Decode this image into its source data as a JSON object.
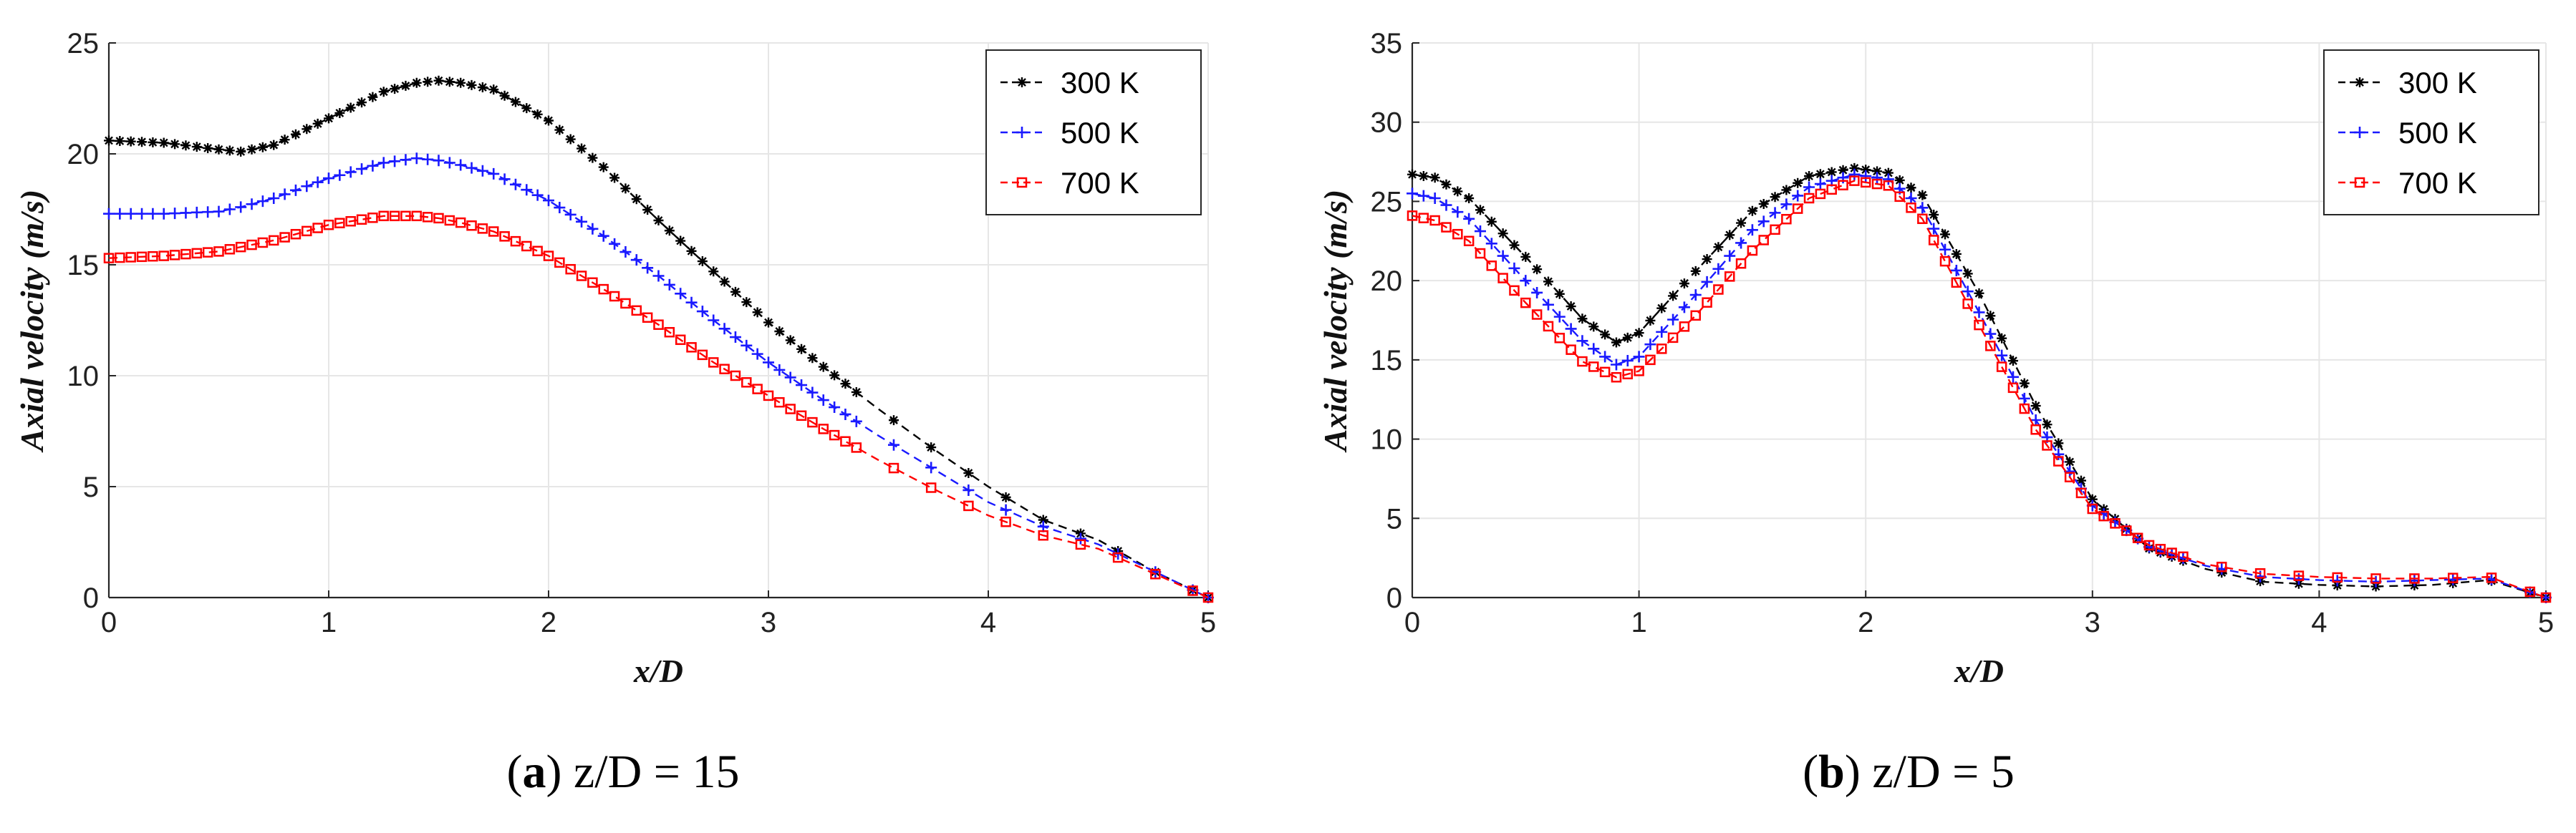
{
  "chart_data": [
    {
      "type": "line",
      "panel_label": "a",
      "caption_text": "z/D = 15",
      "xlabel": "x/D",
      "ylabel": "Axial velocity (m/s)",
      "xlim": [
        0,
        5
      ],
      "ylim": [
        0,
        25
      ],
      "xticks": [
        "0",
        "1",
        "2",
        "3",
        "4",
        "5"
      ],
      "yticks": [
        "0",
        "5",
        "10",
        "15",
        "20",
        "25"
      ],
      "grid": true,
      "legend_position": "top-right",
      "x": [
        0,
        0.25,
        0.5,
        0.6,
        0.75,
        1.0,
        1.25,
        1.4,
        1.5,
        1.6,
        1.75,
        2.0,
        2.25,
        2.5,
        2.75,
        3.0,
        3.25,
        3.5,
        3.75,
        4.0,
        4.25,
        4.5,
        4.75,
        5.0
      ],
      "series": [
        {
          "name": "300 K",
          "color": "#000000",
          "marker": "asterisk",
          "values": [
            20.6,
            20.5,
            20.2,
            20.1,
            20.4,
            21.6,
            22.8,
            23.2,
            23.3,
            23.2,
            22.9,
            21.5,
            19.4,
            17.0,
            14.7,
            12.4,
            10.4,
            8.5,
            6.7,
            5.0,
            3.5,
            2.6,
            1.2,
            0.0
          ]
        },
        {
          "name": "500 K",
          "color": "#1a1aff",
          "marker": "plus",
          "values": [
            17.3,
            17.3,
            17.4,
            17.6,
            18.0,
            18.9,
            19.6,
            19.8,
            19.7,
            19.5,
            19.1,
            17.9,
            16.3,
            14.5,
            12.5,
            10.6,
            8.9,
            7.3,
            5.8,
            4.3,
            3.2,
            2.4,
            1.2,
            0.0
          ]
        },
        {
          "name": "700 K",
          "color": "#ff0000",
          "marker": "square",
          "values": [
            15.3,
            15.4,
            15.6,
            15.8,
            16.1,
            16.8,
            17.2,
            17.2,
            17.1,
            16.9,
            16.5,
            15.4,
            13.9,
            12.3,
            10.6,
            9.1,
            7.6,
            6.2,
            4.9,
            3.7,
            2.8,
            2.2,
            1.1,
            0.0
          ]
        }
      ]
    },
    {
      "type": "line",
      "panel_label": "b",
      "caption_text": "z/D = 5",
      "xlabel": "x/D",
      "ylabel": "Axial velocity (m/s)",
      "xlim": [
        0,
        5
      ],
      "ylim": [
        0,
        35
      ],
      "xticks": [
        "0",
        "1",
        "2",
        "3",
        "4",
        "5"
      ],
      "yticks": [
        "0",
        "5",
        "10",
        "15",
        "20",
        "25",
        "30",
        "35"
      ],
      "grid": true,
      "legend_position": "top-right",
      "x": [
        0,
        0.1,
        0.25,
        0.5,
        0.75,
        0.9,
        1.0,
        1.25,
        1.5,
        1.75,
        1.95,
        2.1,
        2.25,
        2.5,
        2.75,
        3.0,
        3.25,
        3.5,
        3.75,
        4.0,
        4.25,
        4.5,
        4.75,
        5.0
      ],
      "series": [
        {
          "name": "300 K",
          "color": "#000000",
          "marker": "asterisk",
          "values": [
            26.7,
            26.5,
            25.2,
            21.5,
            17.6,
            16.1,
            16.7,
            20.6,
            24.4,
            26.6,
            27.1,
            26.8,
            25.4,
            19.2,
            12.1,
            6.2,
            3.1,
            1.8,
            1.0,
            0.8,
            0.7,
            0.8,
            1.1,
            0.0
          ]
        },
        {
          "name": "500 K",
          "color": "#1a1aff",
          "marker": "plus",
          "values": [
            25.5,
            25.2,
            23.9,
            20.0,
            16.2,
            14.7,
            15.2,
            19.1,
            23.2,
            25.9,
            26.7,
            26.4,
            24.6,
            18.0,
            11.2,
            5.8,
            3.2,
            2.0,
            1.3,
            1.1,
            1.0,
            1.1,
            1.2,
            0.0
          ]
        },
        {
          "name": "700 K",
          "color": "#ff0000",
          "marker": "square",
          "values": [
            24.1,
            23.8,
            22.5,
            18.6,
            14.9,
            13.9,
            14.3,
            17.8,
            21.9,
            25.2,
            26.3,
            26.0,
            23.9,
            17.2,
            10.6,
            5.6,
            3.3,
            2.1,
            1.5,
            1.3,
            1.2,
            1.2,
            1.3,
            0.0
          ]
        }
      ]
    }
  ]
}
